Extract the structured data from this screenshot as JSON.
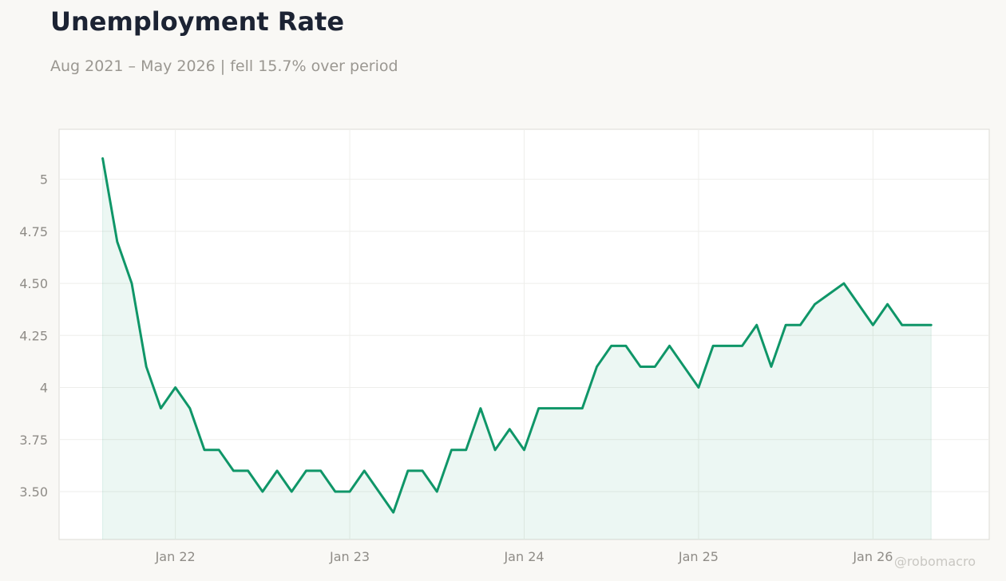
{
  "header": {
    "title": "Unemployment Rate",
    "subtitle": "Aug 2021 – May 2026 | fell 15.7% over period"
  },
  "watermark": "@robomacro",
  "colors": {
    "line": "#0f9668",
    "fill": "#0f9668",
    "background": "#f9f8f5",
    "plot_background": "#ffffff",
    "grid": "#eeeeeb",
    "text_dark": "#1c2333",
    "text_muted": "#9a9791"
  },
  "chart_data": {
    "type": "area",
    "title": "Unemployment Rate",
    "subtitle": "Aug 2021 – May 2026 | fell 15.7% over period",
    "xlabel": "",
    "ylabel": "",
    "x_tick_labels": [
      "Jan 22",
      "Jan 23",
      "Jan 24",
      "Jan 25",
      "Jan 26"
    ],
    "x_tick_dates": [
      "2022-01",
      "2023-01",
      "2024-01",
      "2025-01",
      "2026-01"
    ],
    "y_tick_labels": [
      "3.50",
      "3.75",
      "4",
      "4.25",
      "4.50",
      "4.75",
      "5"
    ],
    "y_ticks": [
      3.5,
      3.75,
      4,
      4.25,
      4.5,
      4.75,
      5
    ],
    "xlim": [
      "2021-05",
      "2026-09"
    ],
    "ylim": [
      3.27,
      5.24
    ],
    "grid": true,
    "legend": "none",
    "x": [
      "2021-08",
      "2021-09",
      "2021-10",
      "2021-11",
      "2021-12",
      "2022-01",
      "2022-02",
      "2022-03",
      "2022-04",
      "2022-05",
      "2022-06",
      "2022-07",
      "2022-08",
      "2022-09",
      "2022-10",
      "2022-11",
      "2022-12",
      "2023-01",
      "2023-02",
      "2023-03",
      "2023-04",
      "2023-05",
      "2023-06",
      "2023-07",
      "2023-08",
      "2023-09",
      "2023-10",
      "2023-11",
      "2023-12",
      "2024-01",
      "2024-02",
      "2024-03",
      "2024-04",
      "2024-05",
      "2024-06",
      "2024-07",
      "2024-08",
      "2024-09",
      "2024-10",
      "2024-11",
      "2024-12",
      "2025-01",
      "2025-02",
      "2025-03",
      "2025-04",
      "2025-05",
      "2025-06",
      "2025-07",
      "2025-08",
      "2025-09",
      "2025-10",
      "2025-11",
      "2025-12",
      "2026-01",
      "2026-02",
      "2026-03",
      "2026-04",
      "2026-05"
    ],
    "series": [
      {
        "values": [
          5.1,
          4.7,
          4.5,
          4.1,
          3.9,
          4.0,
          3.9,
          3.7,
          3.7,
          3.6,
          3.6,
          3.5,
          3.6,
          3.5,
          3.6,
          3.6,
          3.5,
          3.5,
          3.6,
          3.5,
          3.4,
          3.6,
          3.6,
          3.5,
          3.7,
          3.7,
          3.9,
          3.7,
          3.8,
          3.7,
          3.9,
          3.9,
          3.9,
          3.9,
          4.1,
          4.2,
          4.2,
          4.1,
          4.1,
          4.2,
          4.1,
          4.0,
          4.2,
          4.2,
          4.2,
          4.3,
          4.1,
          4.3,
          4.3,
          4.4,
          4.45,
          4.5,
          4.4,
          4.3,
          4.4,
          4.3,
          4.3,
          4.3
        ]
      }
    ]
  }
}
